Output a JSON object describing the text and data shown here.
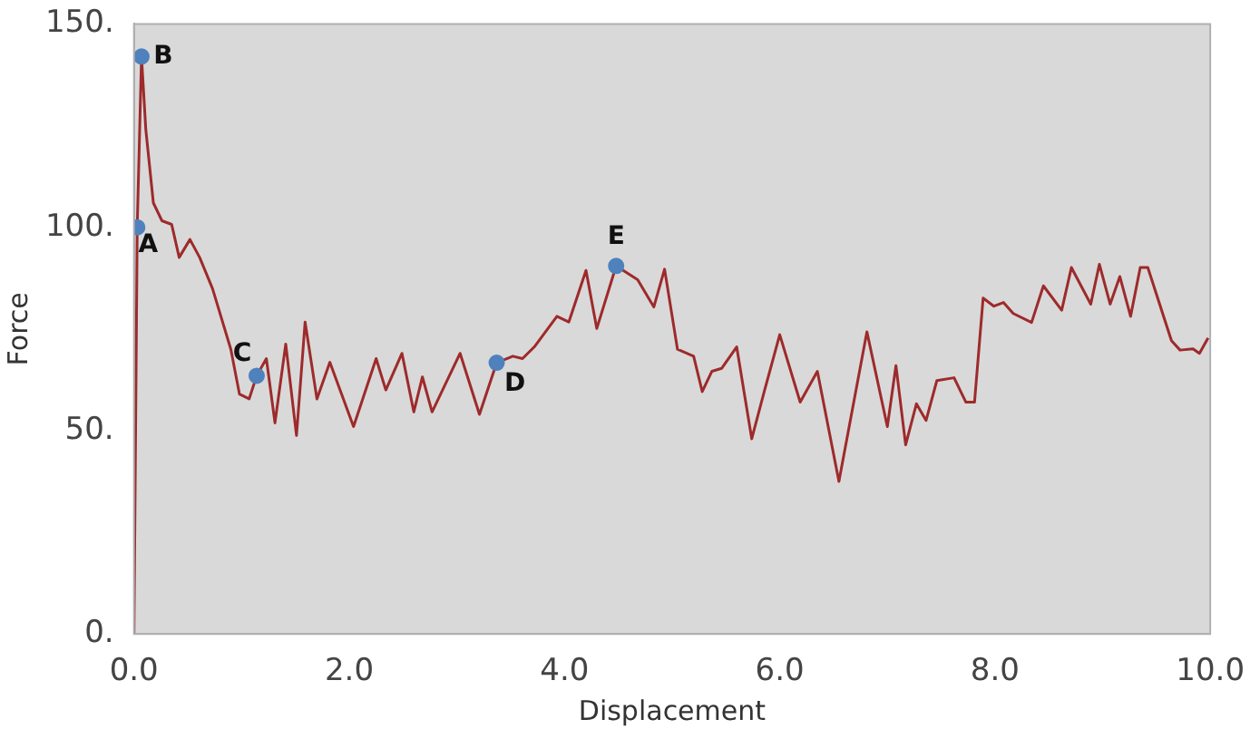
{
  "chart_data": {
    "type": "line",
    "xlabel": "Displacement",
    "ylabel": "Force",
    "xlim": [
      0,
      10
    ],
    "ylim": [
      0,
      150
    ],
    "xticks": [
      {
        "value": 0,
        "label": "0.0"
      },
      {
        "value": 2,
        "label": "2.0"
      },
      {
        "value": 4,
        "label": "4.0"
      },
      {
        "value": 6,
        "label": "6.0"
      },
      {
        "value": 8,
        "label": "8.0"
      },
      {
        "value": 10,
        "label": "10.0"
      }
    ],
    "yticks": [
      {
        "value": 0,
        "label": "0."
      },
      {
        "value": 50,
        "label": "50."
      },
      {
        "value": 100,
        "label": "100."
      },
      {
        "value": 150,
        "label": "150."
      }
    ],
    "grid": false,
    "legend": false,
    "series": [
      {
        "type": "line",
        "color": "#9e2a2b",
        "marker": "none",
        "line_style": "solid",
        "x": [
          0.0,
          0.03,
          0.07,
          0.11,
          0.18,
          0.26,
          0.35,
          0.42,
          0.52,
          0.61,
          0.73,
          0.9,
          0.98,
          1.07,
          1.14,
          1.23,
          1.31,
          1.41,
          1.51,
          1.59,
          1.7,
          1.82,
          2.04,
          2.25,
          2.34,
          2.49,
          2.6,
          2.68,
          2.77,
          3.03,
          3.21,
          3.37,
          3.52,
          3.61,
          3.72,
          3.93,
          4.04,
          4.2,
          4.3,
          4.48,
          4.68,
          4.83,
          4.93,
          5.05,
          5.2,
          5.28,
          5.37,
          5.46,
          5.6,
          5.74,
          5.86,
          6.0,
          6.19,
          6.35,
          6.55,
          6.81,
          7.0,
          7.08,
          7.17,
          7.27,
          7.36,
          7.46,
          7.62,
          7.73,
          7.81,
          7.89,
          7.99,
          8.08,
          8.17,
          8.34,
          8.45,
          8.62,
          8.71,
          8.89,
          8.97,
          9.07,
          9.16,
          9.26,
          9.35,
          9.42,
          9.64,
          9.72,
          9.84,
          9.9,
          9.98
        ],
        "values": [
          0,
          100,
          142,
          124,
          106,
          101.6,
          100.7,
          92.6,
          97,
          92.6,
          84.9,
          70,
          59,
          57.8,
          63.5,
          67.7,
          51.9,
          71.3,
          48.8,
          76.7,
          57.8,
          66.8,
          51,
          67.7,
          60,
          69,
          54.6,
          63.2,
          54.6,
          69,
          54,
          66.7,
          68.3,
          67.7,
          70.6,
          78.1,
          76.7,
          89.4,
          75.1,
          90.5,
          87.1,
          80.4,
          89.7,
          70,
          68.3,
          59.6,
          64.6,
          65.3,
          70.6,
          48,
          60,
          73.6,
          57,
          64.6,
          37.5,
          74.3,
          51,
          66,
          46.5,
          56.6,
          52.5,
          62.3,
          63,
          57,
          57,
          82.6,
          80.6,
          81.5,
          78.8,
          76.6,
          85.6,
          79.6,
          90.1,
          81.1,
          90.9,
          81.1,
          87.9,
          78.1,
          90.1,
          90.1,
          72.1,
          69.8,
          70.1,
          69,
          72.8
        ]
      },
      {
        "type": "scatter",
        "color": "#4f81bd",
        "marker": "circle",
        "x": [
          0.03,
          0.07,
          1.14,
          3.37,
          4.48
        ],
        "values": [
          100,
          142,
          63.5,
          66.7,
          90.5
        ]
      }
    ],
    "annotations": [
      {
        "text": "A",
        "x": 0.03,
        "y": 100
      },
      {
        "text": "B",
        "x": 0.07,
        "y": 142
      },
      {
        "text": "C",
        "x": 1.14,
        "y": 63.5
      },
      {
        "text": "D",
        "x": 3.37,
        "y": 66.7
      },
      {
        "text": "E",
        "x": 4.48,
        "y": 90.5
      }
    ]
  }
}
